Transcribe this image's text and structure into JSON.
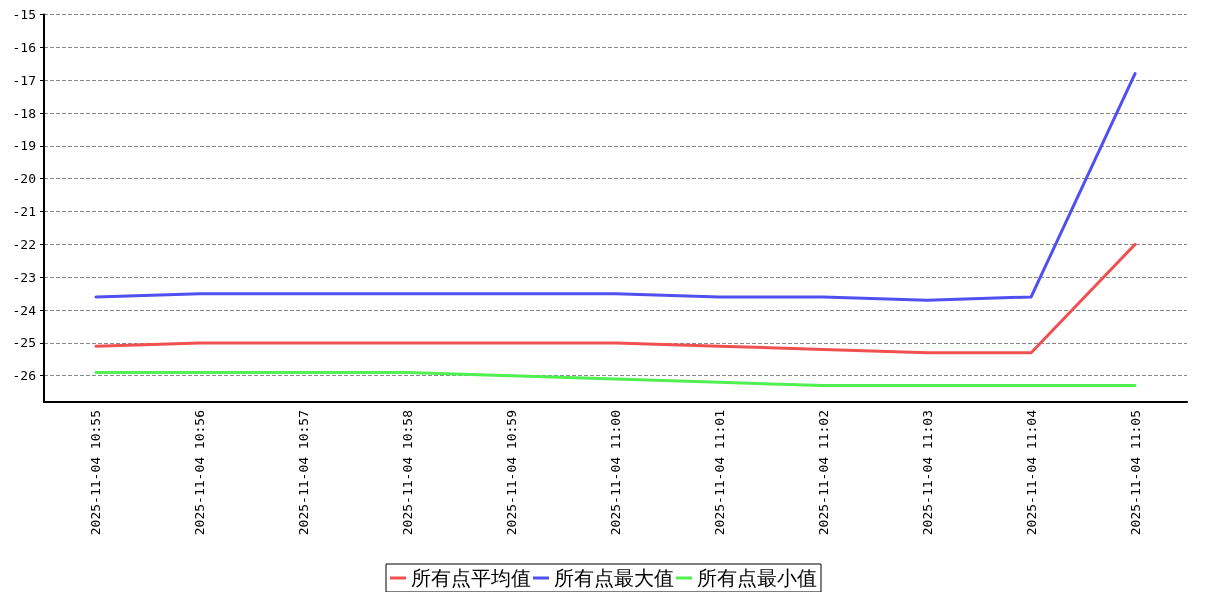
{
  "chart_data": {
    "type": "line",
    "categories": [
      "2025-11-04 10:55",
      "2025-11-04 10:56",
      "2025-11-04 10:57",
      "2025-11-04 10:58",
      "2025-11-04 10:59",
      "2025-11-04 11:00",
      "2025-11-04 11:01",
      "2025-11-04 11:02",
      "2025-11-04 11:03",
      "2025-11-04 11:04",
      "2025-11-04 11:05"
    ],
    "series": [
      {
        "name": "所有点平均值",
        "color": "#f05050",
        "values": [
          -25.1,
          -25.0,
          -25.0,
          -25.0,
          -25.0,
          -25.0,
          -25.1,
          -25.2,
          -25.3,
          -25.3,
          -22.0
        ]
      },
      {
        "name": "所有点最大值",
        "color": "#5050f0",
        "values": [
          -23.6,
          -23.5,
          -23.5,
          -23.5,
          -23.5,
          -23.5,
          -23.6,
          -23.6,
          -23.7,
          -23.6,
          -16.8
        ]
      },
      {
        "name": "所有点最小值",
        "color": "#50f050",
        "values": [
          -25.9,
          -25.9,
          -25.9,
          -25.9,
          -26.0,
          -26.1,
          -26.2,
          -26.3,
          -26.3,
          -26.3,
          -26.3
        ]
      }
    ],
    "ylim": [
      -26.8,
      -15
    ],
    "yticks": [
      -26,
      -25,
      -24,
      -23,
      -22,
      -21,
      -20,
      -19,
      -18,
      -17,
      -16,
      -15
    ],
    "grid": "y",
    "legend": "bottom",
    "marker": "none",
    "line_style": "solid"
  }
}
